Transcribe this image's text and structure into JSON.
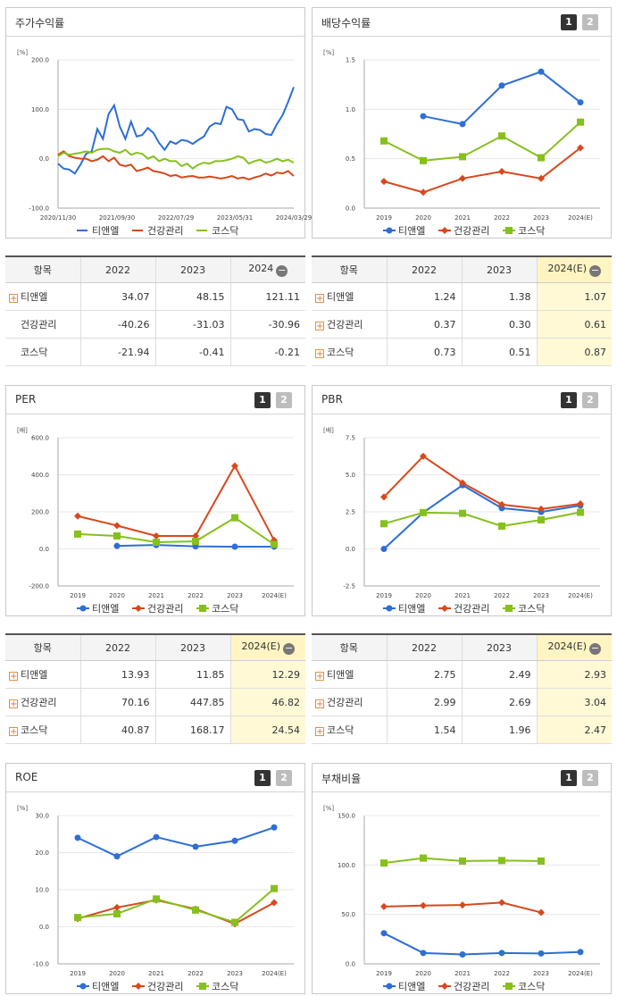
{
  "legend": [
    "티앤엘",
    "건강관리",
    "코스닥"
  ],
  "colors": {
    "s1": "#2e6ed6",
    "s2": "#d8481c",
    "s3": "#86c01c"
  },
  "pages": {
    "p1": "1",
    "p2": "2"
  },
  "tables": {
    "returns": {
      "headers": [
        "항목",
        "2022",
        "2023",
        "2024"
      ],
      "rows": [
        {
          "label": "티앤엘",
          "values": [
            "34.07",
            "48.15",
            "121.11"
          ]
        },
        {
          "label": "건강관리",
          "values": [
            "-40.26",
            "-31.03",
            "-30.96"
          ]
        },
        {
          "label": "코스닥",
          "values": [
            "-21.94",
            "-0.41",
            "-0.21"
          ]
        }
      ]
    },
    "dividend": {
      "headers": [
        "항목",
        "2022",
        "2023",
        "2024(E)"
      ],
      "rows": [
        {
          "label": "티앤엘",
          "values": [
            "1.24",
            "1.38",
            "1.07"
          ]
        },
        {
          "label": "건강관리",
          "values": [
            "0.37",
            "0.30",
            "0.61"
          ]
        },
        {
          "label": "코스닥",
          "values": [
            "0.73",
            "0.51",
            "0.87"
          ]
        }
      ]
    },
    "per": {
      "headers": [
        "항목",
        "2022",
        "2023",
        "2024(E)"
      ],
      "rows": [
        {
          "label": "티앤엘",
          "values": [
            "13.93",
            "11.85",
            "12.29"
          ]
        },
        {
          "label": "건강관리",
          "values": [
            "70.16",
            "447.85",
            "46.82"
          ]
        },
        {
          "label": "코스닥",
          "values": [
            "40.87",
            "168.17",
            "24.54"
          ]
        }
      ]
    },
    "pbr": {
      "headers": [
        "항목",
        "2022",
        "2023",
        "2024(E)"
      ],
      "rows": [
        {
          "label": "티앤엘",
          "values": [
            "2.75",
            "2.49",
            "2.93"
          ]
        },
        {
          "label": "건강관리",
          "values": [
            "2.99",
            "2.69",
            "3.04"
          ]
        },
        {
          "label": "코스닥",
          "values": [
            "1.54",
            "1.96",
            "2.47"
          ]
        }
      ]
    }
  },
  "chart_data": [
    {
      "id": "returns",
      "type": "line",
      "title": "주가수익률",
      "unit": "[%]",
      "ylim": [
        -100,
        200
      ],
      "yticks": [
        "200.0",
        "100.0",
        "0.0",
        "-100.0"
      ],
      "xticks": [
        "2020/11/30",
        "2021/09/30",
        "2022/07/29",
        "2023/05/31",
        "2024/03/29"
      ],
      "series": [
        {
          "name": "티앤엘",
          "values": [
            -10,
            -20,
            -22,
            -30,
            -12,
            10,
            15,
            60,
            40,
            90,
            108,
            65,
            40,
            75,
            45,
            48,
            62,
            52,
            32,
            18,
            35,
            30,
            38,
            36,
            30,
            38,
            45,
            65,
            72,
            70,
            105,
            100,
            80,
            78,
            55,
            60,
            58,
            50,
            48,
            70,
            88,
            115,
            145
          ],
          "markers": false
        },
        {
          "name": "건강관리",
          "values": [
            8,
            15,
            5,
            2,
            0,
            0,
            -5,
            -2,
            5,
            -5,
            2,
            -12,
            -15,
            -12,
            -25,
            -22,
            -18,
            -25,
            -27,
            -30,
            -35,
            -33,
            -38,
            -36,
            -35,
            -38,
            -38,
            -36,
            -38,
            -40,
            -38,
            -35,
            -40,
            -38,
            -42,
            -38,
            -35,
            -30,
            -34,
            -28,
            -30,
            -25,
            -35
          ],
          "markers": false
        },
        {
          "name": "코스닥",
          "values": [
            5,
            12,
            8,
            10,
            12,
            15,
            12,
            18,
            20,
            20,
            15,
            12,
            18,
            8,
            12,
            10,
            0,
            5,
            -5,
            0,
            -5,
            -5,
            -15,
            -10,
            -20,
            -12,
            -8,
            -10,
            -5,
            -5,
            -3,
            0,
            5,
            2,
            -10,
            -5,
            -2,
            -8,
            -5,
            0,
            -5,
            -2,
            -8
          ],
          "markers": false
        }
      ]
    },
    {
      "id": "dividend",
      "type": "line",
      "title": "배당수익률",
      "unit": "[%]",
      "ylim": [
        0,
        1.5
      ],
      "yticks": [
        "1.5",
        "1.0",
        "0.5",
        "0.0"
      ],
      "categories": [
        "2019",
        "2020",
        "2021",
        "2022",
        "2023",
        "2024(E)"
      ],
      "series": [
        {
          "name": "티앤엘",
          "values": [
            null,
            0.93,
            0.85,
            1.24,
            1.38,
            1.07
          ]
        },
        {
          "name": "건강관리",
          "values": [
            0.27,
            0.16,
            0.3,
            0.37,
            0.3,
            0.61
          ]
        },
        {
          "name": "코스닥",
          "values": [
            0.68,
            0.48,
            0.52,
            0.73,
            0.51,
            0.87
          ]
        }
      ]
    },
    {
      "id": "per",
      "type": "line",
      "title": "PER",
      "unit": "[배]",
      "ylim": [
        -200,
        600
      ],
      "yticks": [
        "600.0",
        "400.0",
        "200.0",
        "0.0",
        "-200.0"
      ],
      "categories": [
        "2019",
        "2020",
        "2021",
        "2022",
        "2023",
        "2024(E)"
      ],
      "series": [
        {
          "name": "티앤엘",
          "values": [
            null,
            16.0,
            21.0,
            13.93,
            11.85,
            12.29
          ]
        },
        {
          "name": "건강관리",
          "values": [
            177,
            126,
            70,
            70.16,
            447.85,
            46.82
          ]
        },
        {
          "name": "코스닥",
          "values": [
            80,
            70,
            36,
            40.87,
            168.17,
            24.54
          ]
        }
      ]
    },
    {
      "id": "pbr",
      "type": "line",
      "title": "PBR",
      "unit": "[배]",
      "ylim": [
        -2.5,
        7.5
      ],
      "yticks": [
        "7.5",
        "5.0",
        "2.5",
        "0.0",
        "-2.5"
      ],
      "categories": [
        "2019",
        "2020",
        "2021",
        "2022",
        "2023",
        "2024(E)"
      ],
      "series": [
        {
          "name": "티앤엘",
          "values": [
            0.0,
            2.45,
            4.3,
            2.75,
            2.49,
            2.93
          ]
        },
        {
          "name": "건강관리",
          "values": [
            3.5,
            6.25,
            4.45,
            2.99,
            2.69,
            3.04
          ]
        },
        {
          "name": "코스닥",
          "values": [
            1.7,
            2.45,
            2.4,
            1.54,
            1.96,
            2.47
          ]
        }
      ]
    },
    {
      "id": "roe",
      "type": "line",
      "title": "ROE",
      "unit": "[%]",
      "ylim": [
        -10,
        30
      ],
      "yticks": [
        "30.0",
        "20.0",
        "10.0",
        "0.0",
        "-10.0"
      ],
      "categories": [
        "2019",
        "2020",
        "2021",
        "2022",
        "2023",
        "2024(E)"
      ],
      "series": [
        {
          "name": "티앤엘",
          "values": [
            24.0,
            19.0,
            24.2,
            21.6,
            23.2,
            26.8
          ]
        },
        {
          "name": "건강관리",
          "values": [
            2.2,
            5.2,
            7.2,
            4.8,
            0.8,
            6.5
          ]
        },
        {
          "name": "코스닥",
          "values": [
            2.5,
            3.5,
            7.5,
            4.5,
            1.2,
            10.3
          ]
        }
      ]
    },
    {
      "id": "debt",
      "type": "line",
      "title": "부채비율",
      "unit": "[%]",
      "ylim": [
        0,
        150
      ],
      "yticks": [
        "150.0",
        "100.0",
        "50.0",
        "0.0"
      ],
      "categories": [
        "2019",
        "2020",
        "2021",
        "2022",
        "2023",
        "2024(E)"
      ],
      "series": [
        {
          "name": "티앤엘",
          "values": [
            31,
            11,
            9.5,
            11,
            10.5,
            12
          ]
        },
        {
          "name": "건강관리",
          "values": [
            58,
            59,
            59.5,
            62,
            52,
            null
          ]
        },
        {
          "name": "코스닥",
          "values": [
            102,
            107,
            104,
            104.5,
            104,
            null
          ]
        }
      ]
    }
  ]
}
